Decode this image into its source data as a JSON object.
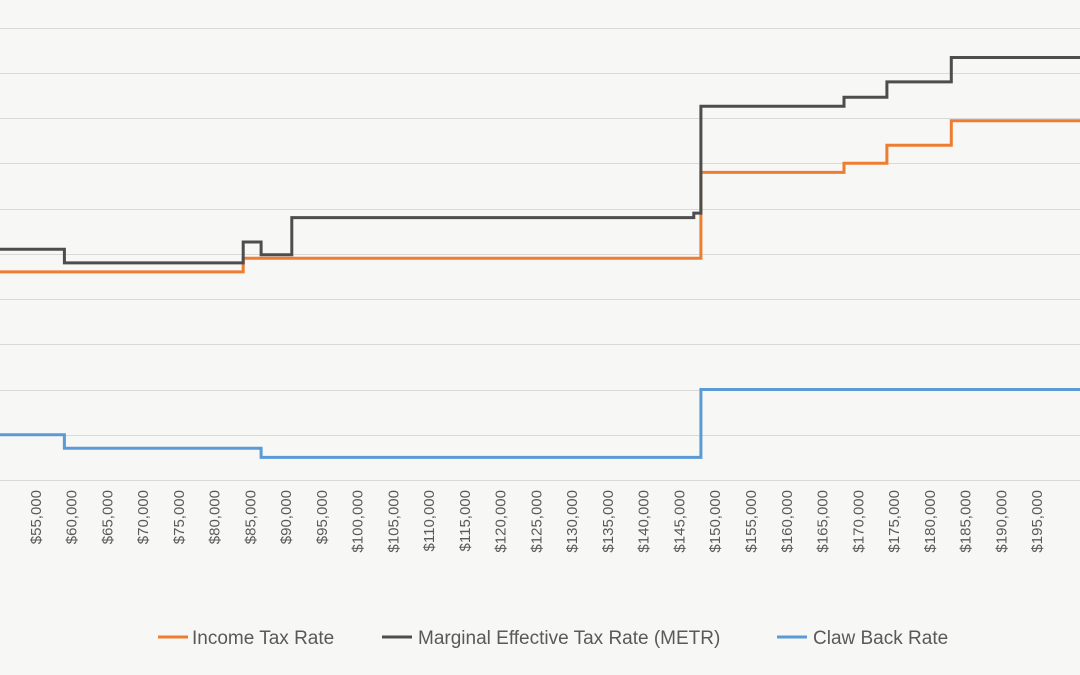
{
  "chart_data": {
    "type": "line",
    "step": true,
    "xlabel": "",
    "ylabel": "",
    "xlim": [
      50000,
      201000
    ],
    "x_tick_values": [
      55000,
      60000,
      65000,
      70000,
      75000,
      80000,
      85000,
      90000,
      95000,
      100000,
      105000,
      110000,
      115000,
      120000,
      125000,
      130000,
      135000,
      140000,
      145000,
      150000,
      155000,
      160000,
      165000,
      170000,
      175000,
      180000,
      185000,
      190000,
      195000
    ],
    "x_tick_labels": [
      "$55,000",
      "$60,000",
      "$65,000",
      "$70,000",
      "$75,000",
      "$80,000",
      "$85,000",
      "$90,000",
      "$95,000",
      "$100,000",
      "$105,000",
      "$110,000",
      "$115,000",
      "$120,000",
      "$125,000",
      "$130,000",
      "$135,000",
      "$140,000",
      "$145,000",
      "$150,000",
      "$155,000",
      "$160,000",
      "$165,000",
      "$170,000",
      "$175,000",
      "$180,000",
      "$185,000",
      "$190,000",
      "$195,000"
    ],
    "ylim": [
      -2.5,
      50
    ],
    "y_gridline_step": 5,
    "grid": true,
    "legend_position": "bottom",
    "series": [
      {
        "name": "Income Tax Rate",
        "color": "#ed7d31",
        "points": [
          [
            50000,
            20.5
          ],
          [
            84000,
            20.5
          ],
          [
            84000,
            22.0
          ],
          [
            85600,
            22.0
          ],
          [
            85600,
            22.0
          ],
          [
            145000,
            22.0
          ],
          [
            145000,
            22.0
          ],
          [
            148000,
            22.0
          ],
          [
            148000,
            31.5
          ],
          [
            168000,
            31.5
          ],
          [
            168000,
            32.5
          ],
          [
            174000,
            32.5
          ],
          [
            174000,
            34.5
          ],
          [
            183000,
            34.5
          ],
          [
            183000,
            37.2
          ],
          [
            201000,
            37.2
          ]
        ]
      },
      {
        "name": "Marginal Effective Tax Rate (METR)",
        "color": "#4d4d4d",
        "points": [
          [
            50000,
            23.0
          ],
          [
            59000,
            23.0
          ],
          [
            59000,
            21.5
          ],
          [
            84000,
            21.5
          ],
          [
            84000,
            23.8
          ],
          [
            86500,
            23.8
          ],
          [
            86500,
            22.4
          ],
          [
            90800,
            22.4
          ],
          [
            90800,
            26.5
          ],
          [
            147000,
            26.5
          ],
          [
            147000,
            27.0
          ],
          [
            148000,
            27.0
          ],
          [
            148000,
            38.8
          ],
          [
            168000,
            38.8
          ],
          [
            168000,
            39.8
          ],
          [
            174000,
            39.8
          ],
          [
            174000,
            41.5
          ],
          [
            183000,
            41.5
          ],
          [
            183000,
            44.2
          ],
          [
            201000,
            44.2
          ]
        ]
      },
      {
        "name": "Claw Back Rate",
        "color": "#5b9bd5",
        "points": [
          [
            50000,
            2.5
          ],
          [
            59000,
            2.5
          ],
          [
            59000,
            1.0
          ],
          [
            86500,
            1.0
          ],
          [
            86500,
            0.0
          ],
          [
            148000,
            0.0
          ],
          [
            148000,
            7.5
          ],
          [
            201000,
            7.5
          ]
        ]
      }
    ]
  }
}
